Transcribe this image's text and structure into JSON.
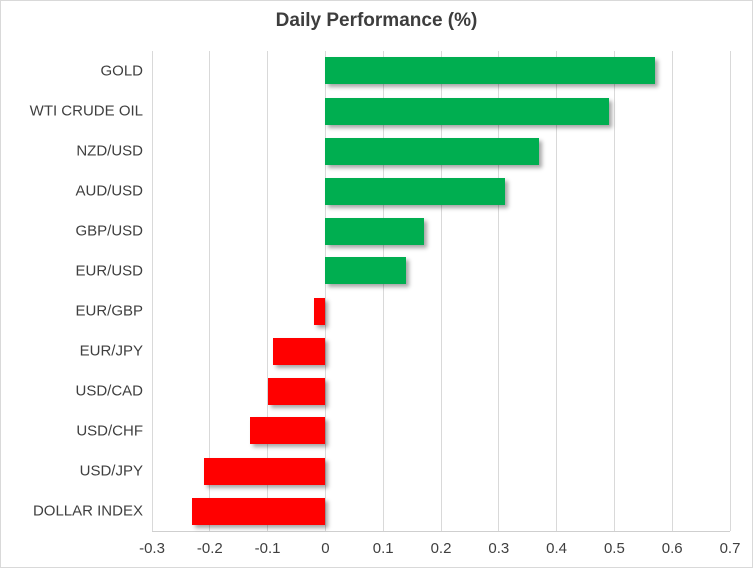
{
  "chart_data": {
    "type": "bar",
    "orientation": "horizontal",
    "title": "Daily Performance (%)",
    "categories": [
      "GOLD",
      "WTI CRUDE OIL",
      "NZD/USD",
      "AUD/USD",
      "GBP/USD",
      "EUR/USD",
      "EUR/GBP",
      "EUR/JPY",
      "USD/CAD",
      "USD/CHF",
      "USD/JPY",
      "DOLLAR INDEX"
    ],
    "values": [
      0.57,
      0.49,
      0.37,
      0.31,
      0.17,
      0.14,
      -0.02,
      -0.09,
      -0.1,
      -0.13,
      -0.21,
      -0.23
    ],
    "xlabel": "",
    "ylabel": "",
    "xlim": [
      -0.3,
      0.7
    ],
    "xticks": [
      -0.3,
      -0.2,
      -0.1,
      0,
      0.1,
      0.2,
      0.3,
      0.4,
      0.5,
      0.6,
      0.7
    ],
    "xtick_labels": [
      "-0.3",
      "-0.2",
      "-0.1",
      "0",
      "0.1",
      "0.2",
      "0.3",
      "0.4",
      "0.5",
      "0.6",
      "0.7"
    ],
    "grid": true,
    "legend": false,
    "colors": {
      "positive": "#00AE50",
      "negative": "#FF0000",
      "gridline": "#D9D9D9",
      "axis_line": "#CFCFCF",
      "text": "#3F3F3F",
      "title_text": "#3D3D3D",
      "border": "#D9D9D9",
      "background": "#FFFFFF"
    }
  }
}
